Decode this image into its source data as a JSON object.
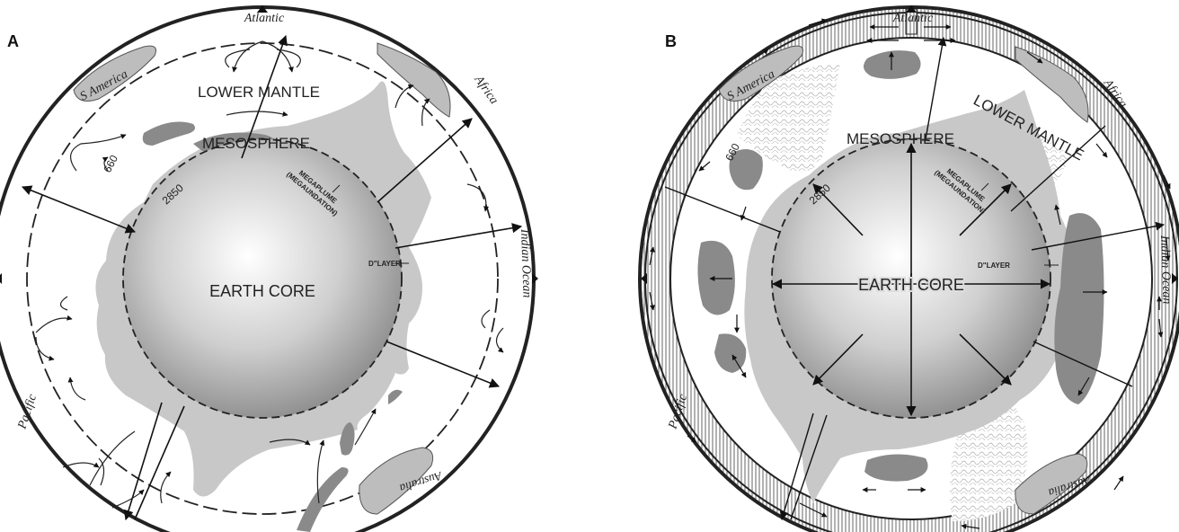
{
  "panels": [
    {
      "letter": "A",
      "core_label": "EARTH CORE",
      "mesosphere_label": "MESOSPHERE",
      "lower_mantle_label": "LOWER MANTLE",
      "megaplume_line1": "MEGAPLUME",
      "megaplume_line2": "(MEGAUNDATION)",
      "d_layer_label": "D\"LAYER",
      "depth_660": "660",
      "depth_2850": "2850",
      "place_atlantic": "Atlantic",
      "place_s_america": "S America",
      "place_africa": "Africa",
      "place_indian_ocean": "Indian Ocean",
      "place_pacific": "Pacific",
      "place_australia": "Australia"
    },
    {
      "letter": "B",
      "core_label": "EARTH CORE",
      "mesosphere_label": "MESOSPHERE",
      "lower_mantle_label": "LOWER MANTLE",
      "megaplume_line1": "MEGAPLUME",
      "megaplume_line2": "(MEGAUNDATION)",
      "d_layer_label": "D\"LAYER",
      "depth_660": "660",
      "depth_2850": "2850",
      "place_atlantic": "Atlantic",
      "place_s_america": "S America",
      "place_africa": "Africa",
      "place_indian_ocean": "Indian Ocean",
      "place_pacific": "Pacific",
      "place_australia": "Australia"
    }
  ],
  "colors": {
    "mesosphere_fill": "#c8c8c8",
    "blob_fill": "#8a8a8a",
    "continent_fill": "#bdbdbd",
    "outline": "#222222"
  }
}
